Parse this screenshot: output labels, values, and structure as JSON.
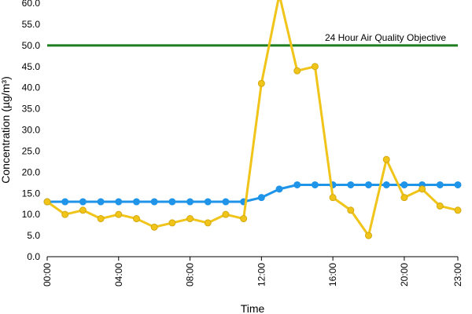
{
  "chart_data": {
    "type": "line",
    "title": "",
    "xlabel": "Time",
    "ylabel": "Concentration (µg/m³)",
    "x": [
      0,
      1,
      2,
      3,
      4,
      5,
      6,
      7,
      8,
      9,
      10,
      11,
      12,
      13,
      14,
      15,
      16,
      17,
      18,
      19,
      20,
      21,
      22,
      23
    ],
    "x_tick_values": [
      0,
      4,
      8,
      12,
      16,
      20,
      23
    ],
    "x_tick_labels": [
      "00:00",
      "04:00",
      "08:00",
      "12:00",
      "16:00",
      "20:00",
      "23:00"
    ],
    "xlim": [
      0,
      23
    ],
    "ylim": [
      0,
      60
    ],
    "y_ticks": [
      "0.0",
      "5.0",
      "10.0",
      "15.0",
      "20.0",
      "25.0",
      "30.0",
      "35.0",
      "40.0",
      "45.0",
      "50.0",
      "55.0",
      "60.0"
    ],
    "grid": false,
    "legend": "none",
    "series": [
      {
        "color": "#1f94e8",
        "values": [
          13,
          13,
          13,
          13,
          13,
          13,
          13,
          13,
          13,
          13,
          13,
          13,
          14,
          16,
          17,
          17,
          17,
          17,
          17,
          17,
          17,
          17,
          17,
          17
        ]
      },
      {
        "color": "#f0c419",
        "values": [
          13,
          10,
          11,
          9,
          10,
          9,
          7,
          8,
          9,
          8,
          10,
          9,
          41,
          62,
          44,
          45,
          14,
          11,
          5,
          23,
          14,
          16,
          12,
          11
        ]
      }
    ],
    "reference_line": {
      "value": 50,
      "label": "24 Hour Air Quality Objective",
      "color": "#1e7d1e"
    }
  }
}
